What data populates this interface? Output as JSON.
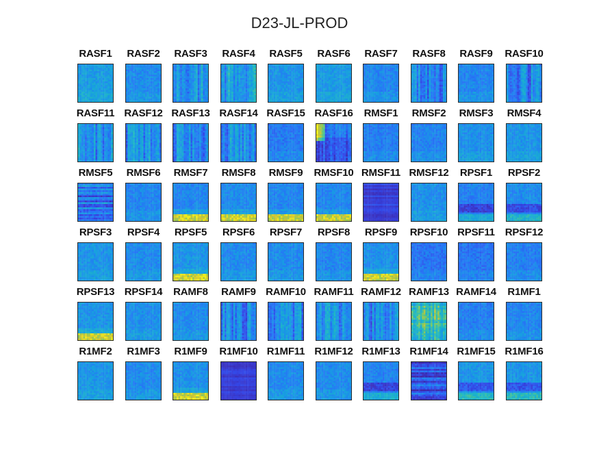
{
  "chart_data": {
    "type": "heatmap",
    "title": "D23-JL-PROD",
    "colormap": "parula",
    "colors": {
      "low": "#3e26a8",
      "base": "#2f6ffc",
      "mid": "#1fb0d8",
      "high": "#82c95e",
      "peak": "#f7e826"
    },
    "panels": [
      {
        "label": "RASF1",
        "level": 0.45,
        "pattern": "diffuse"
      },
      {
        "label": "RASF2",
        "level": 0.38,
        "pattern": "diffuse"
      },
      {
        "label": "RASF3",
        "level": 0.4,
        "pattern": "stripes"
      },
      {
        "label": "RASF4",
        "level": 0.42,
        "pattern": "stripes"
      },
      {
        "label": "RASF5",
        "level": 0.42,
        "pattern": "diffuse"
      },
      {
        "label": "RASF6",
        "level": 0.44,
        "pattern": "diffuse"
      },
      {
        "label": "RASF7",
        "level": 0.36,
        "pattern": "diffuse"
      },
      {
        "label": "RASF8",
        "level": 0.34,
        "pattern": "stripes"
      },
      {
        "label": "RASF9",
        "level": 0.36,
        "pattern": "diffuse"
      },
      {
        "label": "RASF10",
        "level": 0.33,
        "pattern": "stripes"
      },
      {
        "label": "RASF11",
        "level": 0.4,
        "pattern": "stripes"
      },
      {
        "label": "RASF12",
        "level": 0.38,
        "pattern": "stripes"
      },
      {
        "label": "RASF13",
        "level": 0.38,
        "pattern": "stripes"
      },
      {
        "label": "RASF14",
        "level": 0.4,
        "pattern": "stripes"
      },
      {
        "label": "RASF15",
        "level": 0.32,
        "pattern": "diffuse"
      },
      {
        "label": "RASF16",
        "level": 0.3,
        "pattern": "yellow-left"
      },
      {
        "label": "RMSF1",
        "level": 0.33,
        "pattern": "diffuse"
      },
      {
        "label": "RMSF2",
        "level": 0.35,
        "pattern": "diffuse"
      },
      {
        "label": "RMSF3",
        "level": 0.4,
        "pattern": "diffuse"
      },
      {
        "label": "RMSF4",
        "level": 0.42,
        "pattern": "diffuse"
      },
      {
        "label": "RMSF5",
        "level": 0.3,
        "pattern": "hstripes"
      },
      {
        "label": "RMSF6",
        "level": 0.36,
        "pattern": "diffuse"
      },
      {
        "label": "RMSF7",
        "level": 0.36,
        "pattern": "bottom-band"
      },
      {
        "label": "RMSF8",
        "level": 0.38,
        "pattern": "bottom-band"
      },
      {
        "label": "RMSF9",
        "level": 0.36,
        "pattern": "bottom-band"
      },
      {
        "label": "RMSF10",
        "level": 0.36,
        "pattern": "bottom-band"
      },
      {
        "label": "RMSF11",
        "level": 0.12,
        "pattern": "dark"
      },
      {
        "label": "RMSF12",
        "level": 0.4,
        "pattern": "diffuse"
      },
      {
        "label": "RPSF1",
        "level": 0.34,
        "pattern": "dark-band"
      },
      {
        "label": "RPSF2",
        "level": 0.38,
        "pattern": "dark-band"
      },
      {
        "label": "RPSF3",
        "level": 0.42,
        "pattern": "diffuse"
      },
      {
        "label": "RPSF4",
        "level": 0.38,
        "pattern": "diffuse"
      },
      {
        "label": "RPSF5",
        "level": 0.42,
        "pattern": "bottom-band"
      },
      {
        "label": "RPSF6",
        "level": 0.38,
        "pattern": "diffuse"
      },
      {
        "label": "RPSF7",
        "level": 0.38,
        "pattern": "diffuse"
      },
      {
        "label": "RPSF8",
        "level": 0.36,
        "pattern": "diffuse"
      },
      {
        "label": "RPSF9",
        "level": 0.4,
        "pattern": "bottom-band"
      },
      {
        "label": "RPSF10",
        "level": 0.3,
        "pattern": "diffuse"
      },
      {
        "label": "RPSF11",
        "level": 0.3,
        "pattern": "diffuse"
      },
      {
        "label": "RPSF12",
        "level": 0.34,
        "pattern": "diffuse"
      },
      {
        "label": "RPSF13",
        "level": 0.42,
        "pattern": "bottom-band"
      },
      {
        "label": "RPSF14",
        "level": 0.4,
        "pattern": "diffuse"
      },
      {
        "label": "RAMF8",
        "level": 0.38,
        "pattern": "diffuse"
      },
      {
        "label": "RAMF9",
        "level": 0.34,
        "pattern": "stripes"
      },
      {
        "label": "RAMF10",
        "level": 0.36,
        "pattern": "stripes"
      },
      {
        "label": "RAMF11",
        "level": 0.4,
        "pattern": "stripes"
      },
      {
        "label": "RAMF12",
        "level": 0.34,
        "pattern": "stripes"
      },
      {
        "label": "RAMF13",
        "level": 0.55,
        "pattern": "yellow-grid"
      },
      {
        "label": "RAMF14",
        "level": 0.34,
        "pattern": "diffuse"
      },
      {
        "label": "R1MF1",
        "level": 0.36,
        "pattern": "diffuse"
      },
      {
        "label": "R1MF2",
        "level": 0.42,
        "pattern": "diffuse"
      },
      {
        "label": "R1MF3",
        "level": 0.38,
        "pattern": "diffuse"
      },
      {
        "label": "R1MF9",
        "level": 0.4,
        "pattern": "bottom-band"
      },
      {
        "label": "R1MF10",
        "level": 0.1,
        "pattern": "dark"
      },
      {
        "label": "R1MF11",
        "level": 0.38,
        "pattern": "diffuse"
      },
      {
        "label": "R1MF12",
        "level": 0.38,
        "pattern": "diffuse"
      },
      {
        "label": "R1MF13",
        "level": 0.35,
        "pattern": "dark-band"
      },
      {
        "label": "R1MF14",
        "level": 0.18,
        "pattern": "hstripes"
      },
      {
        "label": "R1MF15",
        "level": 0.42,
        "pattern": "dark-band"
      },
      {
        "label": "R1MF16",
        "level": 0.42,
        "pattern": "dark-band"
      }
    ]
  }
}
